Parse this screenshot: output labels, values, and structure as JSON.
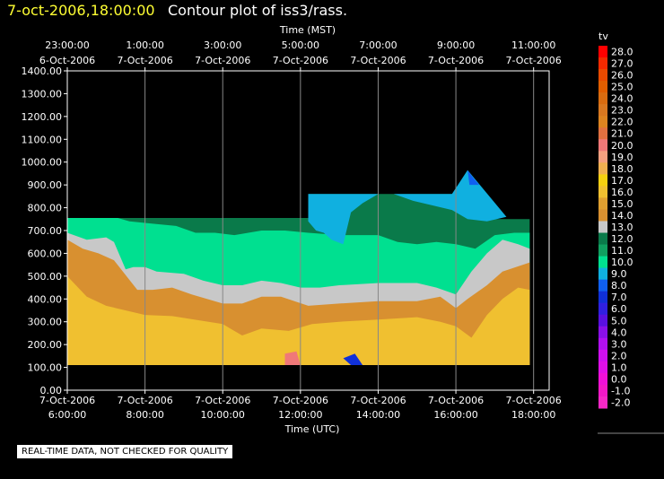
{
  "header": {
    "time": "7-oct-2006,18:00:00",
    "title": "Contour plot of iss3/rass."
  },
  "note": "REAL-TIME DATA, NOT CHECKED FOR QUALITY",
  "chart_data": {
    "type": "heatmap",
    "title": "Contour plot of iss3/rass.",
    "xlabel_top": "Time (MST)",
    "xlabel_bottom": "Time (UTC)",
    "ylabel": "",
    "ylim": [
      0,
      1400
    ],
    "xlim_utc_hours": [
      6,
      18.4
    ],
    "y_ticks": [
      "0.00",
      "100.00",
      "200.00",
      "300.00",
      "400.00",
      "500.00",
      "600.00",
      "700.00",
      "800.00",
      "900.00",
      "1000.00",
      "1100.00",
      "1200.00",
      "1300.00",
      "1400.00"
    ],
    "x_ticks_bottom": [
      {
        "h": 6,
        "date": "7-Oct-2006",
        "time": "6:00:00"
      },
      {
        "h": 8,
        "date": "7-Oct-2006",
        "time": "8:00:00"
      },
      {
        "h": 10,
        "date": "7-Oct-2006",
        "time": "10:00:00"
      },
      {
        "h": 12,
        "date": "7-Oct-2006",
        "time": "12:00:00"
      },
      {
        "h": 14,
        "date": "7-Oct-2006",
        "time": "14:00:00"
      },
      {
        "h": 16,
        "date": "7-Oct-2006",
        "time": "16:00:00"
      },
      {
        "h": 18,
        "date": "7-Oct-2006",
        "time": "18:00:00"
      }
    ],
    "x_ticks_top": [
      {
        "h": 6,
        "time": "23:00:00",
        "date": "6-Oct-2006"
      },
      {
        "h": 8,
        "time": "1:00:00",
        "date": "7-Oct-2006"
      },
      {
        "h": 10,
        "time": "3:00:00",
        "date": "7-Oct-2006"
      },
      {
        "h": 12,
        "time": "5:00:00",
        "date": "7-Oct-2006"
      },
      {
        "h": 14,
        "time": "7:00:00",
        "date": "7-Oct-2006"
      },
      {
        "h": 16,
        "time": "9:00:00",
        "date": "7-Oct-2006"
      },
      {
        "h": 18,
        "time": "11:00:00",
        "date": "7-Oct-2006"
      }
    ],
    "grid": true,
    "colorbar": {
      "label": "tv",
      "levels": [
        {
          "v": "28.0",
          "c": "#ff0000"
        },
        {
          "v": "27.0",
          "c": "#f22a00"
        },
        {
          "v": "26.0",
          "c": "#e84a00"
        },
        {
          "v": "25.0",
          "c": "#e05e00"
        },
        {
          "v": "24.0",
          "c": "#d86c10"
        },
        {
          "v": "23.0",
          "c": "#d87820"
        },
        {
          "v": "22.0",
          "c": "#dc8420"
        },
        {
          "v": "21.0",
          "c": "#e07040"
        },
        {
          "v": "20.0",
          "c": "#f07878"
        },
        {
          "v": "19.0",
          "c": "#f5a080"
        },
        {
          "v": "18.0",
          "c": "#f0b050"
        },
        {
          "v": "17.0",
          "c": "#f5d010"
        },
        {
          "v": "16.0",
          "c": "#f0c030"
        },
        {
          "v": "15.0",
          "c": "#e0a030"
        },
        {
          "v": "14.0",
          "c": "#d89030"
        },
        {
          "v": "13.0",
          "c": "#c8c8c8"
        },
        {
          "v": "12.0",
          "c": "#0a7a4a"
        },
        {
          "v": "11.0",
          "c": "#10a060"
        },
        {
          "v": "10.0",
          "c": "#00e090"
        },
        {
          "v": "9.0",
          "c": "#10b0e0"
        },
        {
          "v": "8.0",
          "c": "#1060f0"
        },
        {
          "v": "7.0",
          "c": "#1030d8"
        },
        {
          "v": "6.0",
          "c": "#3020e0"
        },
        {
          "v": "5.0",
          "c": "#5a10e0"
        },
        {
          "v": "4.0",
          "c": "#8a10e8"
        },
        {
          "v": "3.0",
          "c": "#b010f0"
        },
        {
          "v": "2.0",
          "c": "#d010f0"
        },
        {
          "v": "1.0",
          "c": "#e010e8"
        },
        {
          "v": "0.0",
          "c": "#f010d8"
        },
        {
          "v": "-1.0",
          "c": "#f418c8"
        },
        {
          "v": "-2.0",
          "c": "#f828c8"
        }
      ]
    },
    "bands": [
      {
        "name": "lower-warm",
        "color": "#f0c030",
        "top": [
          [
            6,
            500
          ],
          [
            6.5,
            410
          ],
          [
            7,
            370
          ],
          [
            8,
            330
          ],
          [
            8.7,
            325
          ],
          [
            10,
            290
          ],
          [
            10.5,
            240
          ],
          [
            11,
            270
          ],
          [
            11.7,
            260
          ],
          [
            12.3,
            290
          ],
          [
            13,
            300
          ],
          [
            14,
            310
          ],
          [
            15,
            320
          ],
          [
            15.6,
            300
          ],
          [
            16,
            280
          ],
          [
            16.4,
            230
          ],
          [
            16.8,
            330
          ],
          [
            17.2,
            400
          ],
          [
            17.6,
            450
          ],
          [
            17.9,
            440
          ]
        ]
      },
      {
        "name": "orange",
        "color": "#d89030",
        "top": [
          [
            6,
            660
          ],
          [
            6.4,
            620
          ],
          [
            6.8,
            600
          ],
          [
            7.2,
            570
          ],
          [
            7.8,
            440
          ],
          [
            8.2,
            440
          ],
          [
            8.7,
            450
          ],
          [
            9.2,
            420
          ],
          [
            10,
            380
          ],
          [
            10.5,
            380
          ],
          [
            11,
            410
          ],
          [
            11.5,
            410
          ],
          [
            12.2,
            370
          ],
          [
            13,
            380
          ],
          [
            14,
            390
          ],
          [
            15,
            390
          ],
          [
            15.6,
            410
          ],
          [
            16,
            360
          ],
          [
            16.3,
            400
          ],
          [
            16.8,
            460
          ],
          [
            17.2,
            520
          ],
          [
            17.9,
            560
          ]
        ]
      },
      {
        "name": "grey",
        "color": "#c8c8c8",
        "top": [
          [
            6,
            690
          ],
          [
            6.5,
            660
          ],
          [
            7,
            670
          ],
          [
            7.2,
            650
          ],
          [
            7.5,
            530
          ],
          [
            7.7,
            540
          ],
          [
            8,
            540
          ],
          [
            8.3,
            520
          ],
          [
            9,
            510
          ],
          [
            9.5,
            480
          ],
          [
            10,
            460
          ],
          [
            10.5,
            460
          ],
          [
            11,
            480
          ],
          [
            11.5,
            470
          ],
          [
            12,
            450
          ],
          [
            12.5,
            450
          ],
          [
            13,
            460
          ],
          [
            14,
            470
          ],
          [
            15,
            470
          ],
          [
            15.5,
            450
          ],
          [
            16,
            420
          ],
          [
            16.4,
            520
          ],
          [
            16.8,
            600
          ],
          [
            17.2,
            660
          ],
          [
            17.6,
            640
          ],
          [
            17.9,
            620
          ]
        ]
      },
      {
        "name": "dark-green",
        "color": "#0a7a4a",
        "top": [
          [
            6,
            755
          ],
          [
            12.2,
            755
          ],
          [
            12.2,
            860
          ],
          [
            15.9,
            860
          ],
          [
            16.3,
            870
          ],
          [
            16.5,
            750
          ],
          [
            17.9,
            750
          ]
        ]
      },
      {
        "name": "mint",
        "color": "#00e090",
        "top": [
          [
            6,
            755
          ],
          [
            7.3,
            755
          ],
          [
            7.6,
            740
          ],
          [
            8.2,
            730
          ],
          [
            8.8,
            720
          ],
          [
            9.3,
            690
          ],
          [
            9.8,
            690
          ],
          [
            10.3,
            680
          ],
          [
            11,
            700
          ],
          [
            11.6,
            700
          ],
          [
            12.2,
            690
          ],
          [
            13,
            680
          ],
          [
            14,
            680
          ],
          [
            14.5,
            650
          ],
          [
            15,
            640
          ],
          [
            15.5,
            650
          ],
          [
            16,
            640
          ],
          [
            16.5,
            620
          ],
          [
            17,
            680
          ],
          [
            17.5,
            690
          ],
          [
            17.9,
            690
          ]
        ]
      },
      {
        "name": "sky",
        "color": "#10b0e0",
        "top": [
          [
            12.2,
            860
          ],
          [
            15.9,
            860
          ],
          [
            16.3,
            965
          ],
          [
            16.9,
            860
          ],
          [
            17.6,
            760
          ],
          [
            17.6,
            750
          ]
        ],
        "poly": [
          [
            12.2,
            755
          ],
          [
            12.2,
            860
          ],
          [
            15.9,
            860
          ],
          [
            16.3,
            965
          ],
          [
            17.3,
            760
          ],
          [
            16.8,
            740
          ],
          [
            16.3,
            750
          ],
          [
            15.9,
            790
          ],
          [
            15.4,
            810
          ],
          [
            14.9,
            830
          ],
          [
            14.4,
            860
          ],
          [
            14,
            860
          ],
          [
            13.6,
            820
          ],
          [
            13.3,
            780
          ],
          [
            13.1,
            640
          ],
          [
            12.8,
            660
          ],
          [
            12.6,
            690
          ],
          [
            12.4,
            700
          ],
          [
            12.2,
            740
          ]
        ]
      },
      {
        "name": "blue-spot",
        "color": "#1060f0",
        "poly": [
          [
            16.3,
            965
          ],
          [
            16.35,
            900
          ],
          [
            16.6,
            900
          ],
          [
            16.45,
            930
          ]
        ]
      },
      {
        "name": "dark-blue-cell",
        "color": "#1030d8",
        "poly": [
          [
            13.1,
            140
          ],
          [
            13.4,
            160
          ],
          [
            13.6,
            110
          ],
          [
            13.3,
            110
          ]
        ]
      },
      {
        "name": "pink-cell",
        "color": "#f07878",
        "poly": [
          [
            11.6,
            160
          ],
          [
            11.9,
            170
          ],
          [
            12.0,
            110
          ],
          [
            11.6,
            110
          ]
        ]
      }
    ],
    "data_floor": 110,
    "data_x_range": [
      6,
      17.9
    ]
  }
}
